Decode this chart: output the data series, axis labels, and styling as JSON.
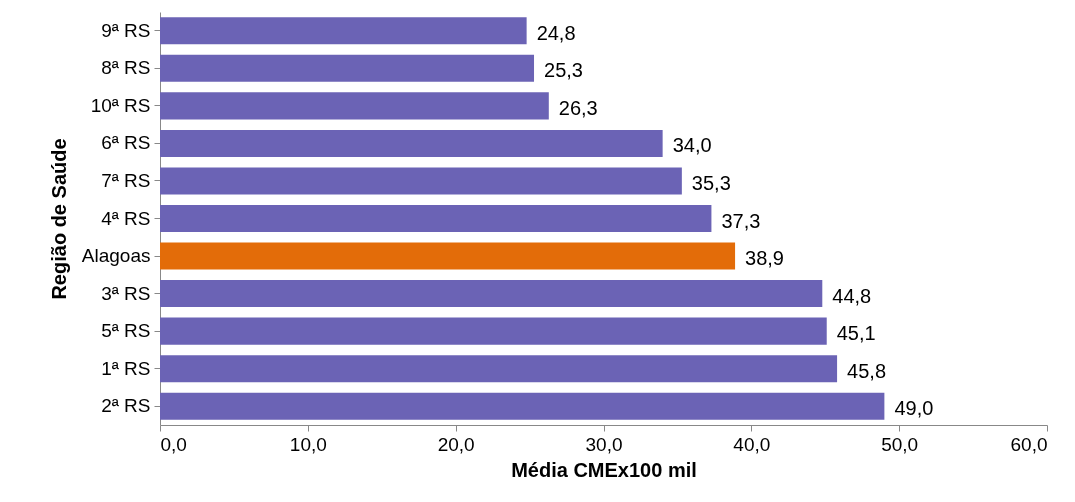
{
  "chart_data": {
    "type": "bar",
    "orientation": "horizontal",
    "xlabel": "Média CMEx100 mil",
    "ylabel": "Região de Saúde",
    "categories": [
      "9ª RS",
      "8ª RS",
      "10ª RS",
      "6ª RS",
      "7ª RS",
      "4ª RS",
      "Alagoas",
      "3ª RS",
      "5ª RS",
      "1ª RS",
      "2ª RS"
    ],
    "values": [
      24.8,
      25.3,
      26.3,
      34.0,
      35.3,
      37.3,
      38.9,
      44.8,
      45.1,
      45.8,
      49.0
    ],
    "value_labels": [
      "24,8",
      "25,3",
      "26,3",
      "34,0",
      "35,3",
      "37,3",
      "38,9",
      "44,8",
      "45,1",
      "45,8",
      "49,0"
    ],
    "colors": [
      "#6b63b5",
      "#6b63b5",
      "#6b63b5",
      "#6b63b5",
      "#6b63b5",
      "#6b63b5",
      "#e36c09",
      "#6b63b5",
      "#6b63b5",
      "#6b63b5",
      "#6b63b5"
    ],
    "xlim": [
      0,
      60
    ],
    "xticks": [
      {
        "value": 0,
        "label": "0,0"
      },
      {
        "value": 10,
        "label": "10,0"
      },
      {
        "value": 20,
        "label": "20,0"
      },
      {
        "value": 30,
        "label": "30,0"
      },
      {
        "value": 40,
        "label": "40,0"
      },
      {
        "value": 50,
        "label": "50,0"
      },
      {
        "value": 60,
        "label": "60,0"
      }
    ],
    "grid": false
  }
}
